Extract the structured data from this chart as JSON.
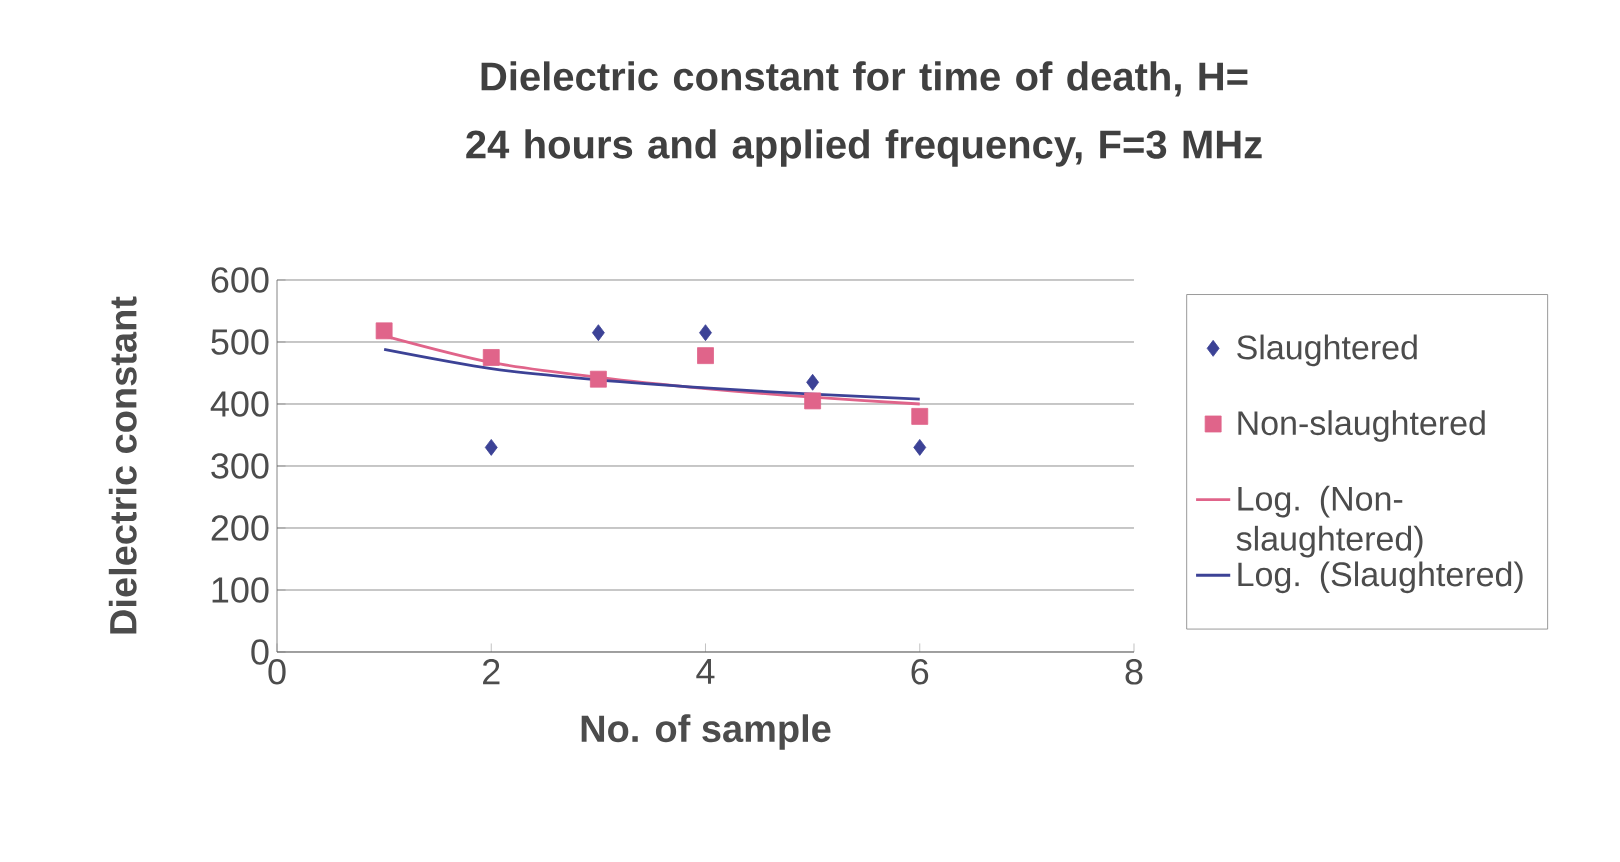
{
  "chart_data": {
    "type": "scatter",
    "title": "Dielectric constant for time of death, H= 24 hours and applied frequency, F=3 MHz",
    "xlabel": "No. of sample",
    "ylabel": "Dielectric constant",
    "xlim": [
      0,
      8
    ],
    "xticks": [
      0,
      2,
      4,
      6,
      8
    ],
    "ylim": [
      0,
      600
    ],
    "yticks": [
      0,
      100,
      200,
      300,
      400,
      500,
      600
    ],
    "grid": "y",
    "legend": "right",
    "series": [
      {
        "name": "Slaughtered",
        "marker": "diamond",
        "color": "#3c4296",
        "x": [
          2,
          3,
          4,
          5,
          6
        ],
        "values": [
          330,
          515,
          515,
          435,
          330
        ]
      },
      {
        "name": "Non-slaughtered",
        "marker": "square",
        "color": "#e0648a",
        "x": [
          1,
          2,
          3,
          4,
          5,
          6
        ],
        "values": [
          518,
          475,
          440,
          478,
          405,
          380
        ]
      },
      {
        "name": "Log. (Non-slaughtered)",
        "type": "line",
        "marker": "none",
        "color": "#e0648a",
        "x": [
          1,
          2,
          3,
          4,
          5,
          6
        ],
        "values": [
          510,
          467,
          443,
          425,
          411,
          400
        ]
      },
      {
        "name": "Log. (Slaughtered)",
        "type": "line",
        "marker": "none",
        "color": "#3c4296",
        "x": [
          1,
          2,
          3,
          4,
          5,
          6
        ],
        "values": [
          488,
          457,
          439,
          426,
          416,
          408
        ]
      }
    ]
  }
}
